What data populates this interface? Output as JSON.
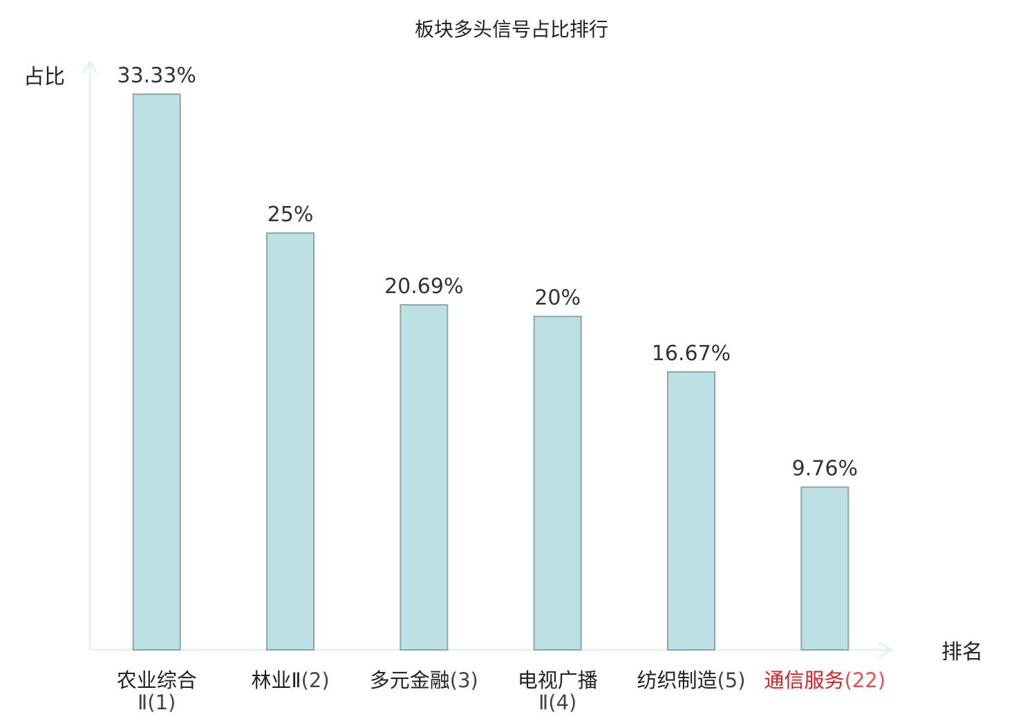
{
  "chart_data": {
    "type": "bar",
    "title": "板块多头信号占比排行",
    "xlabel": "排名",
    "ylabel": "占比",
    "ylim": [
      0,
      34.5
    ],
    "grid": false,
    "legend": "none",
    "categories": [
      {
        "line1": "农业综合",
        "line2": "Ⅱ(1)",
        "highlight": false
      },
      {
        "line1": "林业Ⅱ(2)",
        "line2": "",
        "highlight": false
      },
      {
        "line1": "多元金融(3)",
        "line2": "",
        "highlight": false
      },
      {
        "line1": "电视广播",
        "line2": "Ⅱ(4)",
        "highlight": false
      },
      {
        "line1": "纺织制造(5)",
        "line2": "",
        "highlight": false
      },
      {
        "line1": "通信服务(22)",
        "line2": "",
        "highlight": true
      }
    ],
    "values": [
      33.33,
      25,
      20.69,
      20,
      16.67,
      9.76
    ],
    "value_labels": [
      "33.33%",
      "25%",
      "20.69%",
      "20%",
      "16.67%",
      "9.76%"
    ],
    "colors": {
      "bar_fill": "#bce0e3",
      "bar_stroke": "#8aa8aa",
      "axis": "#e2f3f0",
      "highlight_text": "#e02020"
    }
  }
}
